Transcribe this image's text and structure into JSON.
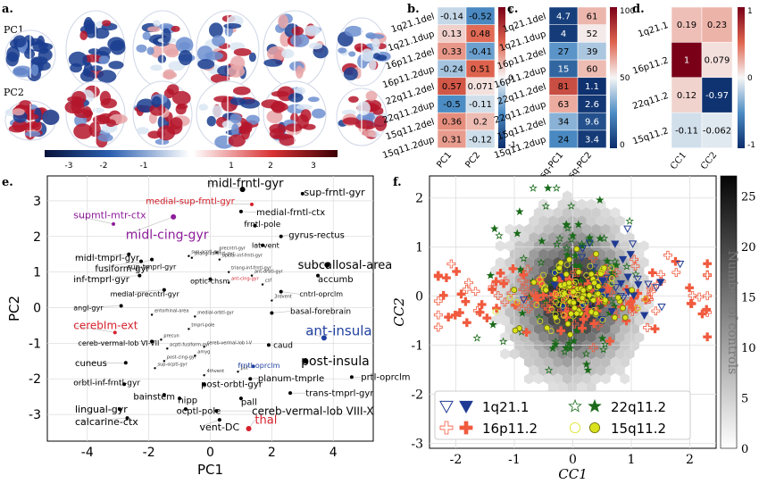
{
  "panel_labels": {
    "a": "a.",
    "b": "b.",
    "c": "c.",
    "d": "d.",
    "e": "e.",
    "f": "f."
  },
  "panel_a": {
    "row_labels": [
      "PC1",
      "PC2"
    ],
    "colorbar_ticks": [
      "-3",
      "-2",
      "-1",
      "1",
      "2",
      "3"
    ],
    "colors": {
      "neg": "#1a3d8f",
      "pos": "#b5162b",
      "light": "#dbe6f3"
    }
  },
  "chart_data": [
    {
      "id": "b",
      "type": "heatmap",
      "rows": [
        "1q21.1del",
        "1q21.1dup",
        "16p11.2del",
        "16p11.2dup",
        "22q11.2del",
        "22q11.2dup",
        "15q11.2del",
        "15q11.2dup"
      ],
      "cols": [
        "PC1",
        "PC2"
      ],
      "values": [
        [
          -0.14,
          -0.52
        ],
        [
          0.13,
          0.48
        ],
        [
          0.33,
          -0.41
        ],
        [
          -0.24,
          0.51
        ],
        [
          0.57,
          0.071
        ],
        [
          -0.5,
          -0.11
        ],
        [
          0.36,
          0.2
        ],
        [
          0.31,
          -0.12
        ]
      ],
      "labels": [
        [
          "-0.14",
          "-0.52"
        ],
        [
          "0.13",
          "0.48"
        ],
        [
          "0.33",
          "-0.41"
        ],
        [
          "-0.24",
          "0.51"
        ],
        [
          "0.57",
          "0.071"
        ],
        [
          "-0.5",
          "-0.11"
        ],
        [
          "0.36",
          "0.2"
        ],
        [
          "0.31",
          "-0.12"
        ]
      ],
      "vmin": -1,
      "vmax": 1,
      "colorbar_ticks": [
        "1",
        "0",
        "-1"
      ],
      "colormap": "RdBu_r"
    },
    {
      "id": "c",
      "type": "heatmap",
      "rows": [
        "1q21.1del",
        "1q21.1dup",
        "16p11.2del",
        "16p11.2dup",
        "22q11.2del",
        "22q11.2dup",
        "15q11.2del",
        "15q11.2dup"
      ],
      "cols": [
        "rsq-PC1",
        "rsq-PC2"
      ],
      "values": [
        [
          4.7,
          61
        ],
        [
          4,
          52
        ],
        [
          27,
          39
        ],
        [
          15,
          60
        ],
        [
          81,
          1.1
        ],
        [
          63,
          2.6
        ],
        [
          34,
          9.6
        ],
        [
          24,
          3.4
        ]
      ],
      "labels": [
        [
          "4.7",
          "61"
        ],
        [
          "4",
          "52"
        ],
        [
          "27",
          "39"
        ],
        [
          "15",
          "60"
        ],
        [
          "81",
          "1.1"
        ],
        [
          "63",
          "2.6"
        ],
        [
          "34",
          "9.6"
        ],
        [
          "24",
          "3.4"
        ]
      ],
      "vmin": 0,
      "vmax": 100,
      "colorbar_ticks": [
        "100",
        "50",
        "0"
      ],
      "colormap": "RdBu_r"
    },
    {
      "id": "d",
      "type": "heatmap",
      "rows": [
        "1q21.1",
        "16p11.2",
        "22q11.2",
        "15q11.2"
      ],
      "cols": [
        "CC1",
        "CC2"
      ],
      "values": [
        [
          0.19,
          0.23
        ],
        [
          1,
          0.079
        ],
        [
          0.12,
          -0.97
        ],
        [
          -0.11,
          -0.062
        ]
      ],
      "labels": [
        [
          "0.19",
          "0.23"
        ],
        [
          "1",
          "0.079"
        ],
        [
          "0.12",
          "-0.97"
        ],
        [
          "-0.11",
          "-0.062"
        ]
      ],
      "vmin": -1,
      "vmax": 1,
      "colorbar_ticks": [
        "1",
        "0",
        "-1"
      ],
      "colormap": "RdBu_r"
    },
    {
      "id": "e",
      "type": "scatter",
      "xlabel": "PC1",
      "ylabel": "PC2",
      "xlim": [
        -5.3,
        5.3
      ],
      "ylim": [
        -3.75,
        3.7
      ],
      "xticks": [
        -4,
        -2,
        0,
        2,
        4
      ],
      "yticks": [
        -3,
        -2,
        -1,
        0,
        1,
        2,
        3
      ],
      "grid": true,
      "points": [
        {
          "label": "midl-frntl-gyr",
          "x": 1.05,
          "y": 3.32,
          "tx": -0.1,
          "ty": 3.5,
          "size": 13,
          "color": "#000000"
        },
        {
          "label": "sup-frntl-gyr",
          "x": 3.0,
          "y": 3.2,
          "tx": 3.05,
          "ty": 3.25,
          "size": 11,
          "color": "#000000"
        },
        {
          "label": "medial-sup-frntl-gyr",
          "x": 1.35,
          "y": 2.9,
          "tx": -2.1,
          "ty": 3.0,
          "size": 10,
          "color": "#d6202c"
        },
        {
          "label": "medial-frntl-ctx",
          "x": 1.0,
          "y": 2.7,
          "tx": 1.5,
          "ty": 2.68,
          "size": 10,
          "color": "#000000"
        },
        {
          "label": "supmtl-mtr-ctx",
          "x": -3.15,
          "y": 2.35,
          "tx": -4.45,
          "ty": 2.6,
          "size": 11,
          "color": "#8f1e9c"
        },
        {
          "label": "frntl-pole",
          "x": 1.45,
          "y": 2.3,
          "tx": 1.1,
          "ty": 2.35,
          "size": 9,
          "color": "#000000"
        },
        {
          "label": "midl-cing-gyr",
          "x": -1.2,
          "y": 2.55,
          "tx": -2.75,
          "ty": 2.05,
          "size": 14,
          "color": "#8f1e9c"
        },
        {
          "label": "gyrus-rectus",
          "x": 2.3,
          "y": 2.0,
          "tx": 2.55,
          "ty": 2.05,
          "size": 10,
          "color": "#000000"
        },
        {
          "label": "lat-vent",
          "x": 1.7,
          "y": 1.75,
          "tx": 1.35,
          "ty": 1.75,
          "size": 8,
          "color": "#000000"
        },
        {
          "label": "midl-tmprl-gyr",
          "x": -2.65,
          "y": 1.5,
          "tx": -4.4,
          "ty": 1.4,
          "size": 10,
          "color": "#000000"
        },
        {
          "label": "fusiform-gyr",
          "x": -2.25,
          "y": 1.3,
          "tx": -3.75,
          "ty": 1.1,
          "size": 10,
          "color": "#000000"
        },
        {
          "label": "sup-tmprl-gyr",
          "x": -1.9,
          "y": 1.35,
          "tx": -2.7,
          "ty": 1.15,
          "size": 8,
          "color": "#000000"
        },
        {
          "label": "subcallosal-area",
          "x": 3.8,
          "y": 1.2,
          "tx": 2.85,
          "ty": 1.2,
          "size": 13,
          "color": "#000000"
        },
        {
          "label": "accumb",
          "x": 3.5,
          "y": 0.9,
          "tx": 3.5,
          "ty": 0.8,
          "size": 10,
          "color": "#000000"
        },
        {
          "label": "inf-tmprl-gyr",
          "x": -2.3,
          "y": 0.9,
          "tx": -4.45,
          "ty": 0.8,
          "size": 10,
          "color": "#000000"
        },
        {
          "label": "optic-chsm",
          "x": 0.0,
          "y": 0.8,
          "tx": -0.65,
          "ty": 0.75,
          "size": 8,
          "color": "#000000"
        },
        {
          "label": "medial-precntrl-gyr",
          "x": -1.5,
          "y": 0.5,
          "tx": -3.25,
          "ty": 0.38,
          "size": 8,
          "color": "#000000"
        },
        {
          "label": "cntrl-oprclm",
          "x": 2.3,
          "y": 0.45,
          "tx": 2.9,
          "ty": 0.38,
          "size": 8,
          "color": "#000000"
        },
        {
          "label": "angl-gyr",
          "x": -2.9,
          "y": 0.05,
          "tx": -4.45,
          "ty": 0.0,
          "size": 8,
          "color": "#000000"
        },
        {
          "label": "basal-forebrain",
          "x": 2.0,
          "y": -0.15,
          "tx": 2.6,
          "ty": -0.1,
          "size": 9,
          "color": "#000000"
        },
        {
          "label": "cerebIm-ext",
          "x": -3.1,
          "y": -0.7,
          "tx": -4.45,
          "ty": -0.5,
          "size": 12,
          "color": "#d6202c"
        },
        {
          "label": "ant-insula",
          "x": 3.7,
          "y": -0.85,
          "tx": 3.1,
          "ty": -0.65,
          "size": 15,
          "color": "#2141a0"
        },
        {
          "label": "cereb-vermal-lob VI-VII",
          "x": -1.9,
          "y": -0.95,
          "tx": -4.3,
          "ty": -1.0,
          "size": 8,
          "color": "#000000"
        },
        {
          "label": "caud",
          "x": 1.9,
          "y": -1.05,
          "tx": 2.05,
          "ty": -1.05,
          "size": 9,
          "color": "#000000"
        },
        {
          "label": "cuneus",
          "x": -2.75,
          "y": -1.55,
          "tx": -4.4,
          "ty": -1.55,
          "size": 10,
          "color": "#000000"
        },
        {
          "label": "post-insula",
          "x": 3.1,
          "y": -1.5,
          "tx": 2.95,
          "ty": -1.5,
          "size": 14,
          "color": "#000000"
        },
        {
          "label": "prtl-oprclm",
          "x": 4.6,
          "y": -1.95,
          "tx": 4.9,
          "ty": -1.95,
          "size": 10,
          "color": "#000000"
        },
        {
          "label": "frntl-oprclm",
          "x": 1.4,
          "y": -1.65,
          "tx": 0.9,
          "ty": -1.62,
          "size": 8,
          "color": "#2141a0"
        },
        {
          "label": "orbtl-inf-frntl-gyr",
          "x": -2.8,
          "y": -2.15,
          "tx": -4.45,
          "ty": -2.1,
          "size": 9,
          "color": "#000000"
        },
        {
          "label": "post-orbtl-gyr",
          "x": -0.2,
          "y": -2.15,
          "tx": -0.3,
          "ty": -2.15,
          "size": 10,
          "color": "#000000"
        },
        {
          "label": "planum-tmprle",
          "x": 1.3,
          "y": -2.0,
          "tx": 1.55,
          "ty": -1.98,
          "size": 10,
          "color": "#000000"
        },
        {
          "label": "trans-tmprl-gyr",
          "x": 2.6,
          "y": -2.4,
          "tx": 3.1,
          "ty": -2.4,
          "size": 10,
          "color": "#000000"
        },
        {
          "label": "bainstem",
          "x": -1.5,
          "y": -2.45,
          "tx": -2.5,
          "ty": -2.5,
          "size": 10,
          "color": "#000000"
        },
        {
          "label": "hipp",
          "x": -1.0,
          "y": -2.55,
          "tx": -1.05,
          "ty": -2.6,
          "size": 10,
          "color": "#000000"
        },
        {
          "label": "pall",
          "x": 1.0,
          "y": -2.55,
          "tx": 1.0,
          "ty": -2.65,
          "size": 10,
          "color": "#000000"
        },
        {
          "label": "lingual-gyr",
          "x": -2.95,
          "y": -2.85,
          "tx": -4.4,
          "ty": -2.85,
          "size": 11,
          "color": "#000000"
        },
        {
          "label": "ocptl-pole",
          "x": -0.8,
          "y": -2.85,
          "tx": -1.1,
          "ty": -2.9,
          "size": 10,
          "color": "#000000"
        },
        {
          "label": "cereb-vermal-lob VIII-X",
          "x": 0.2,
          "y": -2.9,
          "tx": 1.35,
          "ty": -2.9,
          "size": 12,
          "color": "#000000"
        },
        {
          "label": "calcarine-ctx",
          "x": -2.7,
          "y": -3.1,
          "tx": -4.4,
          "ty": -3.2,
          "size": 11,
          "color": "#000000"
        },
        {
          "label": "vent-DC",
          "x": 0.3,
          "y": -3.15,
          "tx": -0.35,
          "ty": -3.35,
          "size": 11,
          "color": "#000000"
        },
        {
          "label": "thal",
          "x": 1.25,
          "y": -3.4,
          "tx": 1.45,
          "ty": -3.15,
          "size": 13,
          "color": "#d6202c"
        }
      ],
      "small_points": [
        {
          "label": "precntrl-gyr",
          "x": 0.2,
          "y": 1.55
        },
        {
          "label": "sup-ocptl-gyr",
          "x": -0.7,
          "y": 1.45
        },
        {
          "label": "triang-inf-frntl-gyr",
          "x": -0.6,
          "y": 1.4
        },
        {
          "label": "opclar-inf-frntl-gyr",
          "x": 0.3,
          "y": 1.35
        },
        {
          "label": "triang-inf-frntl-gyr",
          "x": 0.6,
          "y": 1.0
        },
        {
          "label": "ant-orbtl-gyr",
          "x": 1.35,
          "y": 0.9
        },
        {
          "label": "ant-cing-gyr",
          "x": 0.6,
          "y": 0.7,
          "color": "#d6202c"
        },
        {
          "label": "csf",
          "x": 1.7,
          "y": 0.65
        },
        {
          "label": "medial-orbtl-gyr",
          "x": -0.5,
          "y": -0.25
        },
        {
          "label": "entorhinal-area",
          "x": -1.9,
          "y": -0.2
        },
        {
          "label": "tmprl-pole",
          "x": -0.7,
          "y": -0.6
        },
        {
          "label": "cereb-vermal-lob I-V",
          "x": -0.2,
          "y": -1.1
        },
        {
          "label": "sup-ocptl-gyr",
          "x": -1.8,
          "y": -1.7
        },
        {
          "label": "post-cing-gyr",
          "x": -1.5,
          "y": -1.5
        },
        {
          "label": "4thvent",
          "x": -0.2,
          "y": -1.9
        },
        {
          "label": "amyg",
          "x": -0.5,
          "y": -1.35
        },
        {
          "label": "put",
          "x": 0.9,
          "y": -1.8
        },
        {
          "label": "precun",
          "x": -1.6,
          "y": -0.9
        },
        {
          "label": "ocptl-fusiform-gyr",
          "x": -1.4,
          "y": -1.15
        },
        {
          "label": "3rdvent",
          "x": 2.0,
          "y": 0.2
        }
      ]
    },
    {
      "id": "f",
      "type": "scatter",
      "xlabel": "CC1",
      "ylabel": "CC2",
      "xlim": [
        -2.45,
        2.45
      ],
      "ylim": [
        -3.1,
        2.45
      ],
      "xticks": [
        -2,
        -1,
        0,
        1,
        2
      ],
      "yticks": [
        -3,
        -2,
        -1,
        0,
        1,
        2
      ],
      "grid": true,
      "hexbin": {
        "label": "Number of controls",
        "colorbar_ticks": [
          0,
          5,
          10,
          15,
          20,
          25
        ],
        "vmax": 27
      },
      "legend": {
        "position": "lower-left",
        "entries": [
          "1q21.1",
          "16p11.2",
          "22q11.2",
          "15q11.2"
        ]
      },
      "series": [
        {
          "name": "1q21.1",
          "marker": "triangle-down",
          "color": "#1f3a93",
          "center": [
            0.6,
            0.3
          ],
          "spread": [
            0.55,
            0.45
          ],
          "n": 40
        },
        {
          "name": "16p11.2",
          "marker": "plus",
          "color": "#f05a3e",
          "center": [
            0.0,
            0.0
          ],
          "spread": [
            1.25,
            0.35
          ],
          "n": 160
        },
        {
          "name": "22q11.2",
          "marker": "star",
          "color": "#1b6b1b",
          "center": [
            0.05,
            0.2
          ],
          "spread": [
            0.5,
            0.95
          ],
          "n": 110
        },
        {
          "name": "15q11.2",
          "marker": "circle",
          "color": "#d9e21c",
          "center": [
            0.0,
            0.05
          ],
          "spread": [
            0.45,
            0.35
          ],
          "n": 120
        }
      ]
    }
  ]
}
